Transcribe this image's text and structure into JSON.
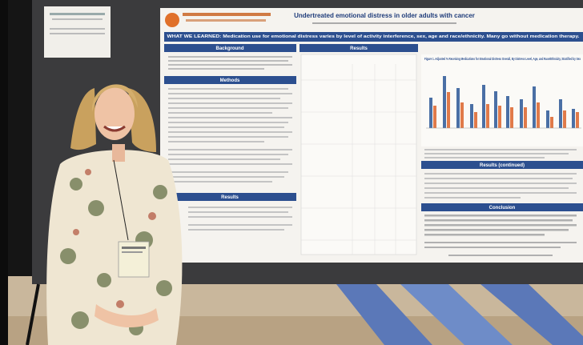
{
  "poster": {
    "title": "Undertreated emotional distress in older adults with cancer",
    "banner": "WHAT WE LEARNED: Medication use for emotional distress varies by level of activity interference, sex, age and race/ethnicity. Many go without medication therapy.",
    "sections": {
      "background": "Background",
      "methods": "Methods",
      "results_left": "Results",
      "results_mid": "Results",
      "results_continued": "Results (continued)",
      "conclusion": "Conclusion"
    },
    "figure_caption": "Figure 1. Adjusted % Receiving Medications for Emotional Distress Overall, By Distress Level, Age, and Race/Ethnicity, Stratified by Sex"
  }
}
